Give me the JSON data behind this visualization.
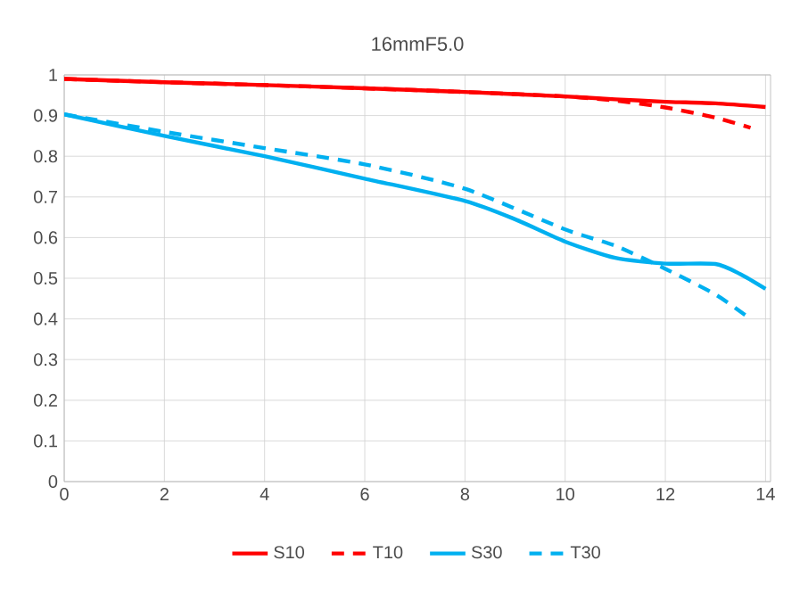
{
  "chart_data": {
    "type": "line",
    "title": "16mmF5.0",
    "xlim": [
      0,
      14.1
    ],
    "ylim": [
      0,
      1
    ],
    "xticks": [
      0,
      2,
      4,
      6,
      8,
      10,
      12,
      14
    ],
    "yticks": [
      0,
      0.1,
      0.2,
      0.3,
      0.4,
      0.5,
      0.6,
      0.7,
      0.8,
      0.9,
      1
    ],
    "grid": true,
    "legend": "bottom",
    "marker": "none",
    "series": [
      {
        "name": "S10",
        "color": "#ff0000",
        "line_style": "solid",
        "x": [
          0,
          2,
          4,
          6,
          8,
          10,
          11,
          12,
          13,
          14
        ],
        "values": [
          0.99,
          0.982,
          0.975,
          0.967,
          0.958,
          0.947,
          0.94,
          0.934,
          0.93,
          0.921
        ]
      },
      {
        "name": "T10",
        "color": "#ff0000",
        "line_style": "dashed",
        "x": [
          0,
          2,
          4,
          6,
          8,
          10,
          11,
          12,
          13,
          13.7
        ],
        "values": [
          0.99,
          0.982,
          0.975,
          0.967,
          0.958,
          0.947,
          0.937,
          0.92,
          0.895,
          0.87
        ]
      },
      {
        "name": "S30",
        "color": "#00b0f0",
        "line_style": "solid",
        "x": [
          0,
          2,
          4,
          6,
          8,
          9,
          10,
          11,
          12,
          13,
          13.5,
          14
        ],
        "values": [
          0.903,
          0.85,
          0.8,
          0.745,
          0.69,
          0.645,
          0.59,
          0.55,
          0.536,
          0.535,
          0.51,
          0.474
        ]
      },
      {
        "name": "T30",
        "color": "#00b0f0",
        "line_style": "dashed",
        "x": [
          0,
          2,
          4,
          6,
          8,
          10,
          11,
          12,
          13,
          13.7
        ],
        "values": [
          0.903,
          0.86,
          0.82,
          0.78,
          0.72,
          0.62,
          0.58,
          0.523,
          0.46,
          0.4
        ]
      }
    ]
  }
}
